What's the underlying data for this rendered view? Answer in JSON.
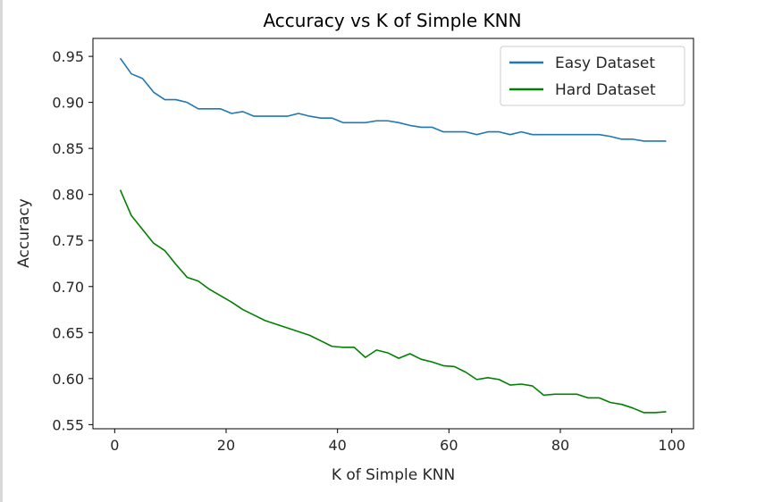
{
  "chart_data": {
    "type": "line",
    "title": "Accuracy vs K of Simple KNN",
    "xlabel": "K of Simple KNN",
    "ylabel": "Accuracy",
    "xlim": [
      -3.9,
      103.9
    ],
    "ylim": [
      0.5455,
      0.9695
    ],
    "xticks": [
      0,
      20,
      40,
      60,
      80,
      100
    ],
    "yticks": [
      0.55,
      0.6,
      0.65,
      0.7,
      0.75,
      0.8,
      0.85,
      0.9,
      0.95
    ],
    "ytick_labels": [
      "0.55",
      "0.60",
      "0.65",
      "0.70",
      "0.75",
      "0.80",
      "0.85",
      "0.90",
      "0.95"
    ],
    "xtick_labels": [
      "0",
      "20",
      "40",
      "60",
      "80",
      "100"
    ],
    "grid": false,
    "legend_position": "top-right",
    "x": [
      1,
      3,
      5,
      7,
      9,
      11,
      13,
      15,
      17,
      19,
      21,
      23,
      25,
      27,
      29,
      31,
      33,
      35,
      37,
      39,
      41,
      43,
      45,
      47,
      49,
      51,
      53,
      55,
      57,
      59,
      61,
      63,
      65,
      67,
      69,
      71,
      73,
      75,
      77,
      79,
      81,
      83,
      85,
      87,
      89,
      91,
      93,
      95,
      97,
      99
    ],
    "series": [
      {
        "name": "Easy Dataset",
        "color": "#1f77b4",
        "values": [
          0.948,
          0.931,
          0.926,
          0.911,
          0.903,
          0.903,
          0.9,
          0.893,
          0.893,
          0.893,
          0.888,
          0.89,
          0.885,
          0.885,
          0.885,
          0.885,
          0.888,
          0.885,
          0.883,
          0.883,
          0.878,
          0.878,
          0.878,
          0.88,
          0.88,
          0.878,
          0.875,
          0.873,
          0.873,
          0.868,
          0.868,
          0.868,
          0.865,
          0.868,
          0.868,
          0.865,
          0.868,
          0.865,
          0.865,
          0.865,
          0.865,
          0.865,
          0.865,
          0.865,
          0.863,
          0.86,
          0.86,
          0.858,
          0.858,
          0.858
        ]
      },
      {
        "name": "Hard Dataset",
        "color": "#008000",
        "values": [
          0.805,
          0.777,
          0.762,
          0.747,
          0.739,
          0.724,
          0.71,
          0.706,
          0.697,
          0.69,
          0.683,
          0.675,
          0.669,
          0.663,
          0.659,
          0.655,
          0.651,
          0.647,
          0.641,
          0.635,
          0.634,
          0.634,
          0.623,
          0.631,
          0.628,
          0.622,
          0.627,
          0.621,
          0.618,
          0.614,
          0.613,
          0.607,
          0.599,
          0.601,
          0.599,
          0.593,
          0.594,
          0.592,
          0.582,
          0.583,
          0.583,
          0.583,
          0.579,
          0.579,
          0.574,
          0.572,
          0.568,
          0.563,
          0.563,
          0.564
        ]
      }
    ]
  }
}
